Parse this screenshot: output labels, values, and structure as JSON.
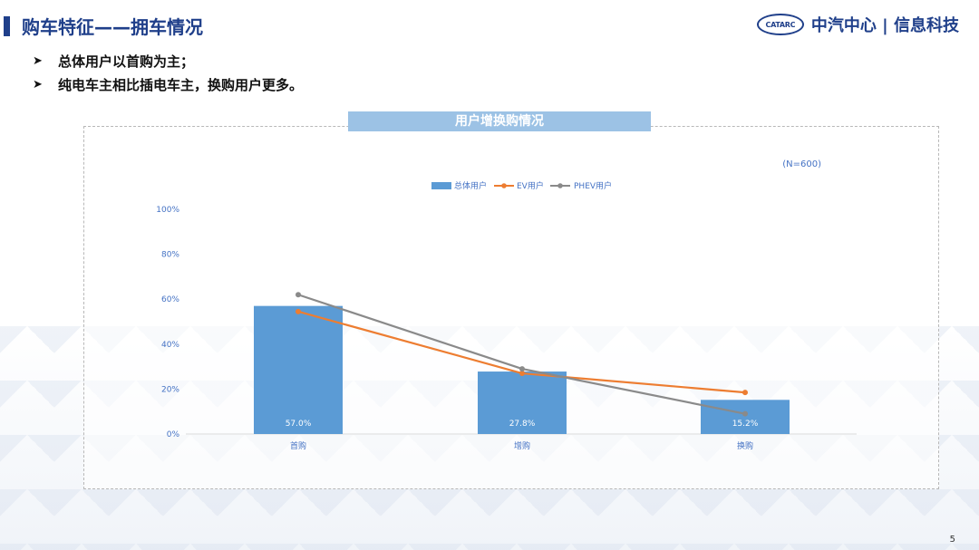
{
  "header": {
    "title": "购车特征——拥车情况",
    "brand_logo": "CATARC",
    "brand_text": "中汽中心 | 信息科技"
  },
  "bullets": [
    "总体用户以首购为主；",
    "纯电车主相比插电车主，换购用户更多。"
  ],
  "page_number": "5",
  "colors": {
    "accent": "#1f3f8a",
    "bar": "#5b9bd5",
    "ev": "#ed7d31",
    "phev": "#8a8a8a",
    "title_bar": "#9cc2e5",
    "axis_text": "#4472c4"
  },
  "chart_data": {
    "type": "bar",
    "title": "用户增换购情况",
    "note": "(N=600)",
    "categories": [
      "首购",
      "增购",
      "换购"
    ],
    "bar_series": {
      "name": "总体用户",
      "values": [
        57.0,
        27.8,
        15.2
      ],
      "labels": [
        "57.0%",
        "27.8%",
        "15.2%"
      ]
    },
    "line_series": [
      {
        "name": "EV用户",
        "values": [
          54.5,
          27.0,
          18.5
        ],
        "color": "#ed7d31"
      },
      {
        "name": "PHEV用户",
        "values": [
          62.0,
          29.0,
          9.0
        ],
        "color": "#8a8a8a"
      }
    ],
    "ylim": [
      0,
      100
    ],
    "yticks": [
      0,
      20,
      40,
      60,
      80,
      100
    ],
    "ytick_labels": [
      "0%",
      "20%",
      "40%",
      "60%",
      "80%",
      "100%"
    ],
    "legend_position": "top",
    "grid": false
  }
}
